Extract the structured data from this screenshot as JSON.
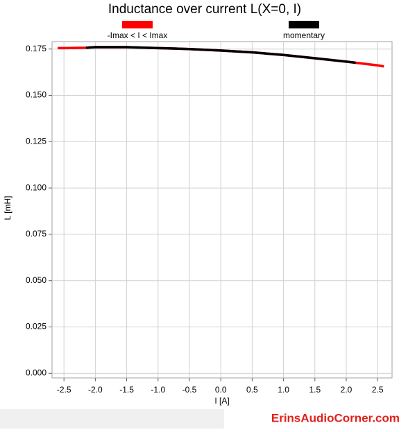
{
  "chart_data": {
    "type": "line",
    "title": "Inductance over current L(X=0, I)",
    "x_label": "I [A]",
    "y_label": "L [mH]",
    "x": [
      -2.6,
      -2.5,
      -2.15,
      -2.0,
      -1.5,
      -1.0,
      -0.5,
      0,
      0.5,
      1.0,
      1.5,
      2.0,
      2.15,
      2.5,
      2.6
    ],
    "series": [
      {
        "name": "-Imax < I < Imax",
        "color": "#ff0000",
        "values": [
          0.1755,
          0.1755,
          0.1757,
          0.176,
          0.176,
          0.1755,
          0.175,
          0.1742,
          0.1732,
          0.1718,
          0.17,
          0.1682,
          0.1676,
          0.1662,
          0.1656
        ]
      },
      {
        "name": "momentary",
        "color": "#000000",
        "values": [
          null,
          null,
          0.1757,
          0.176,
          0.176,
          0.1755,
          0.175,
          0.1742,
          0.1732,
          0.1718,
          0.17,
          0.1682,
          0.1676,
          null,
          null
        ]
      }
    ],
    "xlim": [
      -2.69,
      2.73
    ],
    "ylim": [
      -0.0025,
      0.179
    ],
    "xticks": [
      -2.5,
      {
        "value": -2.0,
        "label": "-2.0"
      },
      -1.5,
      {
        "value": -1.0,
        "label": "-1.0"
      },
      -0.5,
      {
        "value": 0,
        "label": "0.0"
      },
      0.5,
      {
        "value": 1.0,
        "label": "1.0"
      },
      1.5,
      {
        "value": 2.0,
        "label": "2.0"
      },
      2.5
    ],
    "yticks": [
      {
        "value": 0,
        "label": "0.000"
      },
      0.025,
      {
        "value": 0.05,
        "label": "0.050"
      },
      0.075,
      {
        "value": 0.1,
        "label": "0.100"
      },
      0.125,
      {
        "value": 0.15,
        "label": "0.150"
      },
      0.175
    ],
    "grid": true,
    "watermark": "ErinsAudioCorner.com"
  }
}
